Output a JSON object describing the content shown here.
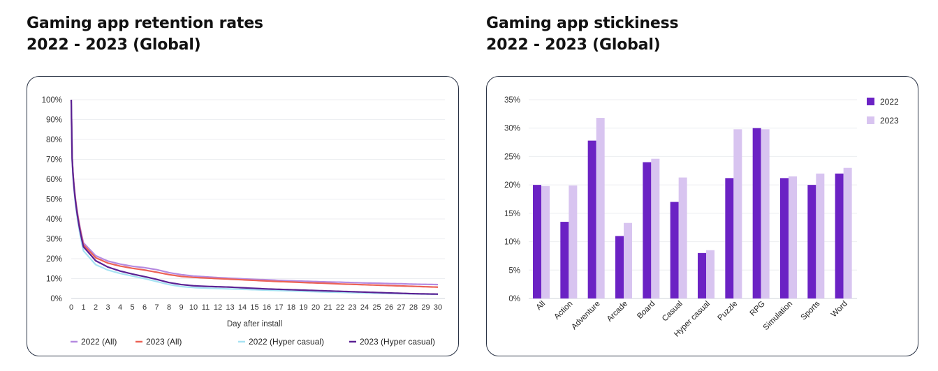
{
  "left": {
    "title_line1": "Gaming app retention rates",
    "title_line2": "2022 - 2023 (Global)"
  },
  "right": {
    "title_line1": "Gaming app stickiness",
    "title_line2": "2022 - 2023 (Global)"
  },
  "colors": {
    "s2022_all": "#b58ae0",
    "s2023_all": "#ec6255",
    "s2022_hyper": "#a7e3f3",
    "s2023_hyper": "#5b2193",
    "bar2022": "#6b22c4",
    "bar2023": "#d8c4f0"
  },
  "chart_data": [
    {
      "type": "line",
      "title": "Gaming app retention rates 2022 - 2023 (Global)",
      "xlabel": "Day after install",
      "ylabel": "",
      "xlim": [
        0,
        30
      ],
      "ylim": [
        0,
        100
      ],
      "x_ticks": [
        "0",
        "1",
        "2",
        "3",
        "4",
        "5",
        "6",
        "7",
        "8",
        "9",
        "10",
        "11",
        "12",
        "13",
        "14",
        "15",
        "16",
        "17",
        "18",
        "19",
        "20",
        "21",
        "22",
        "23",
        "24",
        "25",
        "26",
        "27",
        "28",
        "29",
        "30"
      ],
      "y_ticks": [
        "0%",
        "10%",
        "20%",
        "30%",
        "40%",
        "50%",
        "60%",
        "70%",
        "80%",
        "90%",
        "100%"
      ],
      "grid": true,
      "legend_position": "bottom",
      "x": [
        0,
        1,
        2,
        3,
        4,
        5,
        6,
        7,
        8,
        9,
        10,
        11,
        12,
        13,
        14,
        15,
        16,
        17,
        18,
        19,
        20,
        21,
        22,
        23,
        24,
        25,
        26,
        27,
        28,
        29,
        30
      ],
      "series": [
        {
          "name": "2022 (All)",
          "color_key": "s2022_all",
          "values": [
            100,
            28,
            21.5,
            18.8,
            17.3,
            16.2,
            15.5,
            14.5,
            13,
            12,
            11.3,
            10.9,
            10.5,
            10.2,
            9.9,
            9.6,
            9.4,
            9.1,
            8.9,
            8.7,
            8.5,
            8.3,
            8.2,
            8.0,
            7.8,
            7.7,
            7.5,
            7.4,
            7.2,
            7.1,
            7.0
          ]
        },
        {
          "name": "2023 (All)",
          "color_key": "s2023_all",
          "values": [
            100,
            27,
            20.5,
            17.8,
            16.3,
            15.2,
            14.3,
            13.2,
            12,
            11.1,
            10.6,
            10.3,
            10.0,
            9.7,
            9.4,
            9.1,
            8.8,
            8.5,
            8.3,
            8.0,
            7.8,
            7.6,
            7.3,
            7.1,
            6.9,
            6.7,
            6.5,
            6.3,
            6.1,
            5.9,
            5.7
          ]
        },
        {
          "name": "2022 (Hyper casual)",
          "color_key": "s2022_hyper",
          "values": [
            100,
            24,
            17,
            14.3,
            12.6,
            11.3,
            10,
            8.5,
            7,
            6,
            5.5,
            5.2,
            5.0,
            4.8,
            4.6,
            4.4,
            4.2,
            4.0,
            3.8,
            3.6,
            3.4,
            3.2,
            3.1,
            2.9,
            2.8,
            2.6,
            2.5,
            2.4,
            2.3,
            2.2,
            2.1
          ]
        },
        {
          "name": "2023 (Hyper casual)",
          "color_key": "s2023_hyper",
          "values": [
            100,
            26,
            19,
            15.8,
            13.8,
            12.3,
            11,
            9.6,
            8,
            7,
            6.4,
            6.1,
            5.9,
            5.7,
            5.4,
            5.1,
            4.8,
            4.6,
            4.4,
            4.2,
            4.0,
            3.8,
            3.6,
            3.4,
            3.2,
            3.0,
            2.8,
            2.6,
            2.4,
            2.3,
            2.2
          ]
        }
      ]
    },
    {
      "type": "bar",
      "title": "Gaming app stickiness 2022 - 2023 (Global)",
      "xlabel": "",
      "ylabel": "",
      "ylim": [
        0,
        35
      ],
      "y_ticks": [
        "0%",
        "5%",
        "10%",
        "15%",
        "20%",
        "25%",
        "30%",
        "35%"
      ],
      "grid": true,
      "legend_position": "top-right",
      "categories": [
        "All",
        "Action",
        "Adventure",
        "Arcade",
        "Board",
        "Casual",
        "Hyper casual",
        "Puzzle",
        "RPG",
        "Simulation",
        "Sports",
        "Word"
      ],
      "series": [
        {
          "name": "2022",
          "color_key": "bar2022",
          "values": [
            20,
            13.5,
            27.8,
            11,
            24,
            17,
            8,
            21.2,
            30,
            21.2,
            20,
            22
          ]
        },
        {
          "name": "2023",
          "color_key": "bar2023",
          "values": [
            19.8,
            19.9,
            31.8,
            13.3,
            24.6,
            21.3,
            8.5,
            29.8,
            29.8,
            21.5,
            22,
            23
          ]
        }
      ]
    }
  ]
}
